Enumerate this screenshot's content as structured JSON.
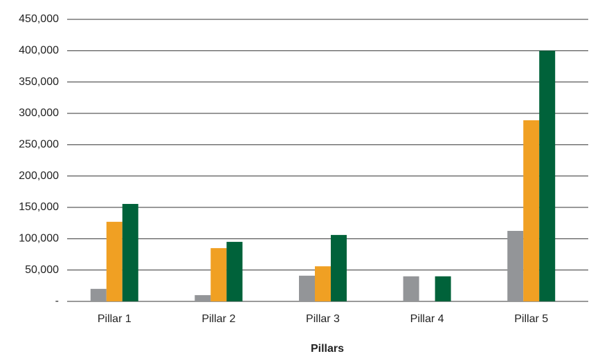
{
  "chart_data": {
    "type": "bar",
    "x_label": "Pillars",
    "categories": [
      "Pillar 1",
      "Pillar 2",
      "Pillar 3",
      "Pillar 4",
      "Pillar 5"
    ],
    "series": [
      {
        "color": "#939598",
        "values": [
          20000,
          10000,
          41000,
          40000,
          112500
        ]
      },
      {
        "color": "#f0a023",
        "values": [
          127000,
          85000,
          56000,
          0,
          289000
        ]
      },
      {
        "color": "#00623a",
        "values": [
          155500,
          95000,
          106000,
          40000,
          400000
        ]
      }
    ],
    "ylim": [
      0,
      450000
    ],
    "yticks": [
      {
        "value": 0,
        "label": "-"
      },
      {
        "value": 50000,
        "label": "50,000"
      },
      {
        "value": 100000,
        "label": "100,000"
      },
      {
        "value": 150000,
        "label": "150,000"
      },
      {
        "value": 200000,
        "label": "200,000"
      },
      {
        "value": 250000,
        "label": "250,000"
      },
      {
        "value": 300000,
        "label": "300,000"
      },
      {
        "value": 350000,
        "label": "350,000"
      },
      {
        "value": 400000,
        "label": "400,000"
      },
      {
        "value": 450000,
        "label": "450,000"
      }
    ],
    "grid": true
  }
}
